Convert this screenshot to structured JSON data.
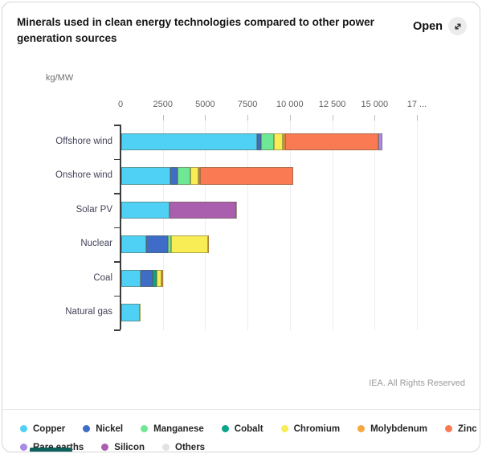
{
  "header": {
    "title": "Minerals used in clean energy technologies compared to other power generation sources",
    "open_label": "Open"
  },
  "footer": {
    "credit": "IEA. All Rights Reserved"
  },
  "icons": {
    "open_icon": "diagonal-expand-arrow"
  },
  "chart_data": {
    "type": "bar",
    "orientation": "horizontal",
    "stacked": true,
    "unit_label": "kg/MW",
    "categories": [
      "Offshore wind",
      "Onshore wind",
      "Solar PV",
      "Nuclear",
      "Coal",
      "Natural gas"
    ],
    "series": [
      {
        "name": "Copper",
        "color": "#4fd0f5",
        "values": [
          8000,
          2900,
          2822,
          1473,
          1150,
          1100
        ]
      },
      {
        "name": "Nickel",
        "color": "#3e6cc7",
        "values": [
          240,
          404,
          1,
          1297,
          721,
          16
        ]
      },
      {
        "name": "Manganese",
        "color": "#6ee895",
        "values": [
          790,
          780,
          0,
          148,
          5,
          0
        ]
      },
      {
        "name": "Cobalt",
        "color": "#0aa489",
        "values": [
          0,
          0,
          0,
          0,
          201,
          2
        ]
      },
      {
        "name": "Chromium",
        "color": "#f8ed55",
        "values": [
          525,
          470,
          0,
          2190,
          308,
          48
        ]
      },
      {
        "name": "Molybdenum",
        "color": "#f8a73e",
        "values": [
          109,
          99,
          0,
          71,
          66,
          0
        ]
      },
      {
        "name": "Zinc",
        "color": "#f97a53",
        "values": [
          5500,
          5500,
          30,
          0,
          0,
          0
        ]
      },
      {
        "name": "Rare earths",
        "color": "#a98ae6",
        "values": [
          239,
          14,
          0,
          1,
          0,
          0
        ]
      },
      {
        "name": "Silicon",
        "color": "#a95fae",
        "values": [
          0,
          0,
          3948,
          0,
          0,
          0
        ]
      },
      {
        "name": "Others",
        "color": "#e2e2e2",
        "values": [
          0,
          0,
          32,
          5,
          33,
          0
        ]
      }
    ],
    "x_ticks": [
      "0",
      "2500",
      "5000",
      "7500",
      "10 000",
      "12 500",
      "15 000",
      "17 ..."
    ],
    "x_tick_values": [
      0,
      2500,
      5000,
      7500,
      10000,
      12500,
      15000,
      17500
    ],
    "xmax": 17500,
    "grid": true,
    "legend_position": "bottom",
    "legend_rows": [
      7,
      3
    ]
  }
}
